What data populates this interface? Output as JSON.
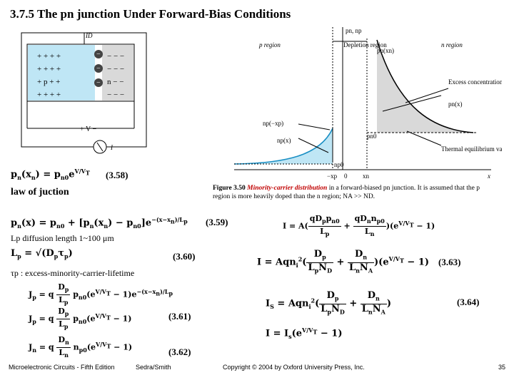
{
  "slide": {
    "title": "3.7.5 The pn junction Under Forward-Bias Conditions",
    "law_label": "law of juction",
    "eq_358_num": "(3.58)",
    "eq_359_num": "(3.59)",
    "eq_360_num": "(3.60)",
    "eq_361_num": "(3.61)",
    "eq_362_num": "(3.62)",
    "eq_363_num": "(3.63)",
    "eq_364_num": "(3.64)",
    "lp_note": "Lp diffusion length 1~100 μm",
    "tau_note": "τp : excess-minority-carrier-lifetime",
    "caption_prefix": "Figure 3.50",
    "caption_red": "Minority-carrier distribution",
    "caption_rest": "in a forward-biased pn junction. It is assumed that the p region is more heavily doped than the n region; NA >> ND."
  },
  "circuit": {
    "labels": [
      "ID",
      "I",
      "p",
      "n",
      "V",
      "+",
      "−"
    ]
  },
  "graph": {
    "y_label": "pn, np",
    "depletion_label": "Depletion region",
    "p_region": "p region",
    "n_region": "n region",
    "pn_xn": "pn(xn)",
    "excess": "Excess concentration",
    "pn_x": "pn(x)",
    "np_minus_xp": "np(−xp)",
    "np_x": "np(x)",
    "pn0": "pn0",
    "np0": "np0",
    "thermal": "Thermal equilibrium value",
    "x_neg_xp": "−xp",
    "x_zero": "0",
    "x_xn": "xn",
    "x_axis": "x"
  },
  "footer": {
    "left": "Microelectronic Circuits - Fifth Edition",
    "author": "Sedra/Smith",
    "copyright": "Copyright © 2004 by Oxford University Press, Inc.",
    "page": "35"
  }
}
